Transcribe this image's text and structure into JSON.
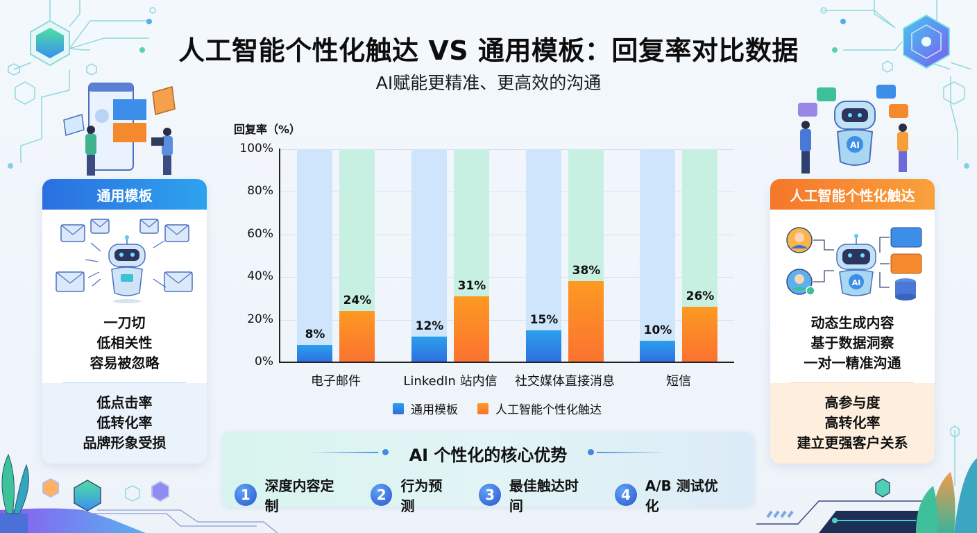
{
  "header": {
    "title": "人工智能个性化触达 VS 通用模板：回复率对比数据",
    "subtitle": "AI赋能更精准、更高效的沟通"
  },
  "left_card": {
    "title": "通用模板",
    "illustration": "robot-sending-mass-emails",
    "traits": [
      "一刀切",
      "低相关性",
      "容易被忽略"
    ],
    "outcomes": [
      "低点击率",
      "低转化率",
      "品牌形象受损"
    ],
    "color": "#2b6fe0"
  },
  "right_card": {
    "title": "人工智能个性化触达",
    "illustration": "ai-robot-personalized-messaging",
    "traits": [
      "动态生成内容",
      "基于数据洞察",
      "一对一精准沟通"
    ],
    "outcomes": [
      "高参与度",
      "高转化率",
      "建立更强客户关系"
    ],
    "color": "#f5772a"
  },
  "chart_data": {
    "type": "bar",
    "title": "",
    "ylabel": "回复率（%）",
    "xlabel": "",
    "ylim": [
      0,
      100
    ],
    "yticks": [
      "0%",
      "20%",
      "40%",
      "60%",
      "80%",
      "100%"
    ],
    "grid": true,
    "legend_position": "bottom",
    "categories": [
      "电子邮件",
      "LinkedIn 站内信",
      "社交媒体直接消息",
      "短信"
    ],
    "series": [
      {
        "name": "通用模板",
        "color": "#2f7be6",
        "values": [
          8,
          12,
          15,
          10
        ],
        "labels": [
          "8%",
          "12%",
          "15%",
          "10%"
        ]
      },
      {
        "name": "人工智能个性化触达",
        "color": "#fb7f2a",
        "values": [
          24,
          31,
          38,
          26
        ],
        "labels": [
          "24%",
          "31%",
          "38%",
          "26%"
        ]
      }
    ]
  },
  "advantages": {
    "title": "AI 个性化的核心优势",
    "items": [
      {
        "num": "1",
        "label": "深度内容定制"
      },
      {
        "num": "2",
        "label": "行为预测"
      },
      {
        "num": "3",
        "label": "最佳触达时间"
      },
      {
        "num": "4",
        "label": "A/B 测试优化"
      }
    ]
  }
}
